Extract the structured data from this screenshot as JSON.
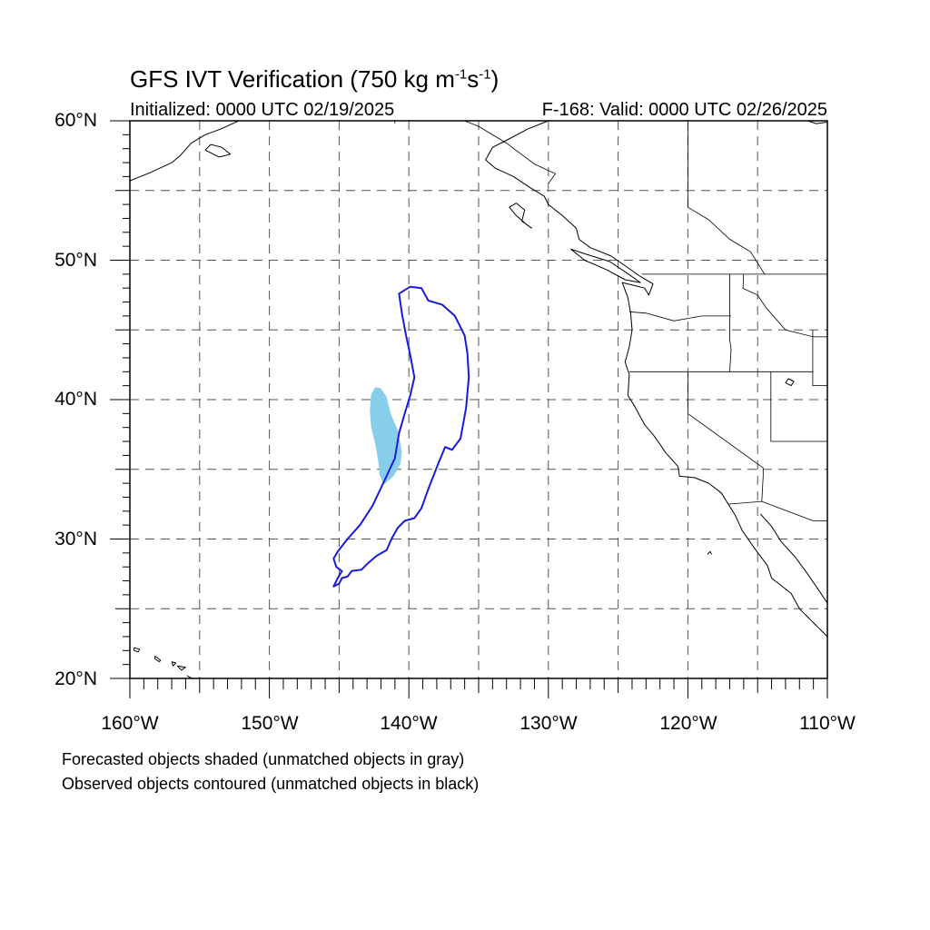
{
  "title": {
    "prefix": "GFS IVT Verification (750 kg m",
    "exp1": "-1",
    "mid": "s",
    "exp2": "-1",
    "suffix": ")"
  },
  "initialized": "Initialized: 0000 UTC 02/19/2025",
  "valid": "F-168: Valid: 0000 UTC 02/26/2025",
  "lat_labels": [
    "60°N",
    "50°N",
    "40°N",
    "30°N",
    "20°N"
  ],
  "lon_labels": [
    "160°W",
    "150°W",
    "140°W",
    "130°W",
    "120°W",
    "110°W"
  ],
  "notes": [
    "Forecasted objects shaded (unmatched objects in gray)",
    "Observed objects contoured (unmatched objects in black)"
  ],
  "map": {
    "extent": {
      "lon": [
        -160,
        -110
      ],
      "lat": [
        20,
        60
      ]
    },
    "gridlines": "dashed",
    "forecast_color": "#87ceeb",
    "observed_color": "#1a1adc",
    "forecast_object": [
      [
        -142.4,
        40.9
      ],
      [
        -142.0,
        40.8
      ],
      [
        -141.6,
        40.2
      ],
      [
        -141.3,
        39.0
      ],
      [
        -140.8,
        37.8
      ],
      [
        -140.5,
        36.3
      ],
      [
        -140.6,
        35.4
      ],
      [
        -141.1,
        34.5
      ],
      [
        -141.8,
        33.9
      ],
      [
        -142.1,
        34.6
      ],
      [
        -142.2,
        35.6
      ],
      [
        -142.4,
        36.8
      ],
      [
        -142.7,
        38.0
      ],
      [
        -142.8,
        39.2
      ],
      [
        -142.7,
        40.4
      ]
    ],
    "observed_object": [
      [
        -139.9,
        48.1
      ],
      [
        -139.1,
        48.0
      ],
      [
        -138.6,
        47.1
      ],
      [
        -137.6,
        46.8
      ],
      [
        -136.7,
        46.0
      ],
      [
        -136.0,
        44.6
      ],
      [
        -135.8,
        43.3
      ],
      [
        -135.7,
        41.6
      ],
      [
        -135.9,
        39.4
      ],
      [
        -136.3,
        37.2
      ],
      [
        -136.9,
        36.4
      ],
      [
        -137.4,
        36.6
      ],
      [
        -137.9,
        35.4
      ],
      [
        -138.6,
        33.6
      ],
      [
        -139.1,
        32.2
      ],
      [
        -139.6,
        31.5
      ],
      [
        -140.3,
        31.3
      ],
      [
        -140.8,
        30.8
      ],
      [
        -141.2,
        30.1
      ],
      [
        -141.6,
        29.2
      ],
      [
        -142.3,
        28.8
      ],
      [
        -142.9,
        28.3
      ],
      [
        -143.4,
        27.8
      ],
      [
        -144.1,
        27.7
      ],
      [
        -144.4,
        27.3
      ],
      [
        -144.8,
        27.2
      ],
      [
        -145.0,
        26.8
      ],
      [
        -145.4,
        26.6
      ],
      [
        -145.1,
        27.2
      ],
      [
        -144.8,
        27.7
      ],
      [
        -145.2,
        28.0
      ],
      [
        -145.4,
        28.6
      ],
      [
        -145.1,
        29.1
      ],
      [
        -144.4,
        30.0
      ],
      [
        -143.5,
        31.0
      ],
      [
        -142.6,
        32.4
      ],
      [
        -141.7,
        34.3
      ],
      [
        -141.0,
        35.8
      ],
      [
        -140.7,
        37.6
      ],
      [
        -140.3,
        39.0
      ],
      [
        -139.9,
        40.3
      ],
      [
        -139.6,
        41.6
      ],
      [
        -139.9,
        43.2
      ],
      [
        -140.2,
        44.6
      ],
      [
        -140.5,
        46.2
      ],
      [
        -140.7,
        47.6
      ]
    ],
    "coastlines": [
      [
        [
          -130.0,
          60.0
        ],
        [
          -131.5,
          59.4
        ],
        [
          -133.0,
          58.6
        ],
        [
          -134.0,
          58.1
        ],
        [
          -134.5,
          57.2
        ],
        [
          -133.8,
          56.6
        ],
        [
          -132.5,
          56.0
        ],
        [
          -131.3,
          55.2
        ],
        [
          -130.3,
          54.6
        ],
        [
          -130.0,
          54.0
        ],
        [
          -129.0,
          53.2
        ],
        [
          -128.0,
          52.3
        ],
        [
          -127.8,
          51.5
        ],
        [
          -127.0,
          50.9
        ],
        [
          -125.5,
          50.3
        ],
        [
          -124.5,
          49.6
        ],
        [
          -123.5,
          48.9
        ],
        [
          -122.5,
          48.3
        ],
        [
          -122.8,
          47.5
        ],
        [
          -123.1,
          48.0
        ],
        [
          -124.7,
          48.4
        ],
        [
          -124.3,
          47.3
        ],
        [
          -124.1,
          46.2
        ],
        [
          -124.0,
          45.0
        ],
        [
          -124.2,
          43.8
        ],
        [
          -124.5,
          42.7
        ],
        [
          -124.2,
          41.8
        ],
        [
          -124.3,
          40.3
        ],
        [
          -123.8,
          39.5
        ],
        [
          -123.1,
          38.2
        ],
        [
          -122.5,
          37.5
        ],
        [
          -122.0,
          36.8
        ],
        [
          -121.6,
          36.2
        ],
        [
          -120.7,
          35.2
        ],
        [
          -120.6,
          34.5
        ],
        [
          -119.5,
          34.4
        ],
        [
          -118.5,
          34.0
        ],
        [
          -117.6,
          33.3
        ],
        [
          -117.1,
          32.5
        ],
        [
          -116.6,
          31.7
        ],
        [
          -116.1,
          30.6
        ],
        [
          -115.2,
          29.3
        ],
        [
          -114.3,
          28.1
        ],
        [
          -114.0,
          27.2
        ],
        [
          -112.6,
          26.1
        ],
        [
          -112.0,
          25.0
        ],
        [
          -111.0,
          24.0
        ],
        [
          -110.0,
          23.0
        ]
      ],
      [
        [
          -114.8,
          31.8
        ],
        [
          -114.0,
          30.9
        ],
        [
          -113.3,
          29.8
        ],
        [
          -112.3,
          28.7
        ],
        [
          -111.5,
          27.6
        ],
        [
          -110.8,
          26.6
        ],
        [
          -110.0,
          25.4
        ]
      ],
      [
        [
          -160.0,
          55.7
        ],
        [
          -158.5,
          56.3
        ],
        [
          -157.0,
          57.0
        ],
        [
          -156.4,
          57.5
        ],
        [
          -155.6,
          58.4
        ],
        [
          -154.6,
          59.0
        ],
        [
          -153.5,
          59.4
        ],
        [
          -152.2,
          60.0
        ]
      ],
      [
        [
          -154.6,
          57.9
        ],
        [
          -153.6,
          57.4
        ],
        [
          -152.8,
          57.6
        ],
        [
          -153.4,
          58.1
        ],
        [
          -154.2,
          58.3
        ],
        [
          -154.6,
          57.9
        ]
      ],
      [
        [
          -132.3,
          54.1
        ],
        [
          -131.7,
          53.6
        ],
        [
          -131.9,
          52.8
        ],
        [
          -131.2,
          52.3
        ],
        [
          -131.6,
          52.6
        ],
        [
          -132.3,
          53.2
        ],
        [
          -132.8,
          53.8
        ],
        [
          -132.3,
          54.1
        ]
      ],
      [
        [
          -128.4,
          50.8
        ],
        [
          -127.2,
          50.4
        ],
        [
          -125.6,
          49.9
        ],
        [
          -124.4,
          49.1
        ],
        [
          -123.4,
          48.4
        ],
        [
          -124.5,
          48.6
        ],
        [
          -125.8,
          49.3
        ],
        [
          -127.4,
          50.0
        ],
        [
          -128.4,
          50.8
        ]
      ],
      [
        [
          -155.9,
          20.2
        ],
        [
          -155.4,
          19.9
        ],
        [
          -155.0,
          19.7
        ],
        [
          -154.8,
          19.5
        ]
      ],
      [
        [
          -159.7,
          22.2
        ],
        [
          -159.3,
          22.1
        ],
        [
          -159.4,
          21.9
        ],
        [
          -159.7,
          22.0
        ],
        [
          -159.7,
          22.2
        ]
      ],
      [
        [
          -158.2,
          21.6
        ],
        [
          -157.8,
          21.3
        ],
        [
          -157.9,
          21.2
        ],
        [
          -158.2,
          21.4
        ],
        [
          -158.2,
          21.6
        ]
      ],
      [
        [
          -157.0,
          21.2
        ],
        [
          -156.7,
          21.1
        ],
        [
          -156.9,
          20.9
        ],
        [
          -157.0,
          21.2
        ]
      ],
      [
        [
          -156.6,
          20.9
        ],
        [
          -156.0,
          20.8
        ],
        [
          -156.3,
          20.6
        ],
        [
          -156.6,
          20.9
        ]
      ],
      [
        [
          -111.4,
          60.0
        ],
        [
          -110.8,
          59.8
        ],
        [
          -110.0,
          59.9
        ]
      ],
      [
        [
          -113.0,
          41.2
        ],
        [
          -112.6,
          41.0
        ],
        [
          -112.4,
          41.3
        ],
        [
          -112.8,
          41.5
        ],
        [
          -113.0,
          41.2
        ]
      ],
      [
        [
          -118.6,
          28.9
        ],
        [
          -118.4,
          29.1
        ],
        [
          -118.3,
          28.9
        ]
      ]
    ],
    "borders": [
      [
        [
          -123.3,
          49.0
        ],
        [
          -110.0,
          49.0
        ]
      ],
      [
        [
          -130.0,
          55.5
        ],
        [
          -129.5,
          56.2
        ],
        [
          -131.0,
          56.9
        ],
        [
          -133.0,
          58.4
        ],
        [
          -135.0,
          59.6
        ],
        [
          -136.0,
          60.0
        ]
      ],
      [
        [
          -141.0,
          60.0
        ],
        [
          -141.0,
          59.8
        ]
      ],
      [
        [
          -117.1,
          32.5
        ],
        [
          -114.7,
          32.7
        ],
        [
          -111.0,
          31.3
        ],
        [
          -110.0,
          31.3
        ]
      ],
      [
        [
          -124.2,
          46.3
        ],
        [
          -123.0,
          46.2
        ],
        [
          -121.0,
          45.65
        ],
        [
          -119.0,
          46.0
        ],
        [
          -116.9,
          46.0
        ]
      ],
      [
        [
          -117.0,
          49.0
        ],
        [
          -117.0,
          44.3
        ],
        [
          -116.9,
          43.6
        ],
        [
          -117.0,
          42.0
        ]
      ],
      [
        [
          -124.2,
          42.0
        ],
        [
          -111.0,
          42.0
        ]
      ],
      [
        [
          -120.0,
          42.0
        ],
        [
          -120.0,
          39.0
        ],
        [
          -114.6,
          35.1
        ],
        [
          -114.6,
          34.5
        ],
        [
          -114.7,
          32.7
        ]
      ],
      [
        [
          -114.05,
          42.0
        ],
        [
          -114.05,
          37.0
        ],
        [
          -110.0,
          37.0
        ]
      ],
      [
        [
          -116.0,
          49.0
        ],
        [
          -116.05,
          47.98
        ],
        [
          -115.0,
          47.5
        ],
        [
          -114.4,
          46.6
        ],
        [
          -113.0,
          45.0
        ],
        [
          -111.0,
          44.5
        ],
        [
          -110.0,
          44.5
        ]
      ],
      [
        [
          -111.05,
          45.0
        ],
        [
          -111.05,
          41.0
        ],
        [
          -110.0,
          41.0
        ]
      ],
      [
        [
          -120.0,
          60.0
        ],
        [
          -120.0,
          53.8
        ],
        [
          -118.5,
          52.9
        ],
        [
          -117.0,
          51.5
        ],
        [
          -115.5,
          50.6
        ],
        [
          -114.5,
          49.0
        ]
      ]
    ]
  }
}
